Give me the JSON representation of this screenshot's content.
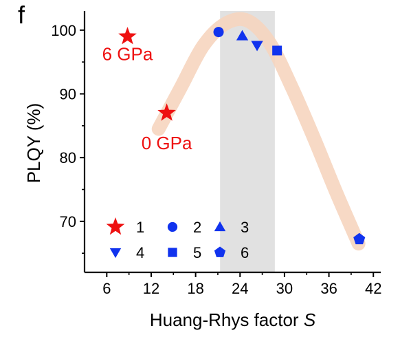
{
  "panel_label": "f",
  "colors": {
    "red": "#ee1111",
    "blue": "#1133ee",
    "band": "#f6d5bf",
    "shade": "#dcdcdc"
  },
  "chart_data": {
    "type": "scatter",
    "title": "",
    "xlabel_main": "Huang-Rhys factor ",
    "xlabel_var": "S",
    "ylabel": "PLQY (%)",
    "xlim": [
      3,
      43
    ],
    "ylim": [
      62,
      103
    ],
    "xticks": [
      6,
      12,
      18,
      24,
      30,
      36,
      42
    ],
    "yticks": [
      70,
      80,
      90,
      100
    ],
    "grid": false,
    "shaded_region": [
      21.3,
      28.7
    ],
    "trend_band": [
      [
        13,
        84.5
      ],
      [
        16,
        91
      ],
      [
        19,
        97.5
      ],
      [
        22,
        101
      ],
      [
        25,
        101.5
      ],
      [
        28,
        98
      ],
      [
        31,
        91
      ],
      [
        34,
        83
      ],
      [
        37,
        74.5
      ],
      [
        40,
        66.5
      ]
    ],
    "series": [
      {
        "name": "1",
        "marker": "star",
        "color": "#ee1111",
        "points": [
          [
            8.8,
            99
          ],
          [
            14.1,
            87
          ]
        ]
      },
      {
        "name": "2",
        "marker": "circle",
        "color": "#1133ee",
        "points": [
          [
            21.1,
            99.7
          ]
        ]
      },
      {
        "name": "3",
        "marker": "triangle-up",
        "color": "#1133ee",
        "points": [
          [
            24.3,
            99.1
          ]
        ]
      },
      {
        "name": "4",
        "marker": "triangle-down",
        "color": "#1133ee",
        "points": [
          [
            26.3,
            97.6
          ]
        ]
      },
      {
        "name": "5",
        "marker": "square",
        "color": "#1133ee",
        "points": [
          [
            29,
            96.8
          ]
        ]
      },
      {
        "name": "6",
        "marker": "pentagon",
        "color": "#1133ee",
        "points": [
          [
            40.1,
            67.2
          ]
        ]
      }
    ],
    "annotations": [
      {
        "text": "6 GPa",
        "x": 8.8,
        "y": 95.3,
        "color": "#ee1111"
      },
      {
        "text": "0 GPa",
        "x": 14.1,
        "y": 81.3,
        "color": "#ee1111"
      }
    ],
    "legend_position": "bottom-left"
  }
}
